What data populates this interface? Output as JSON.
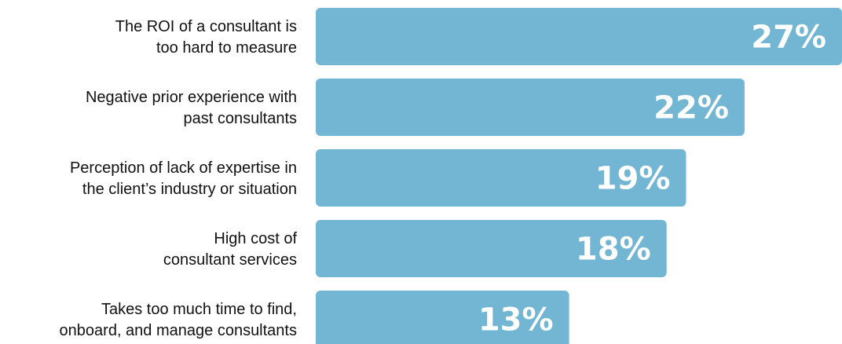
{
  "chart_data": {
    "type": "bar",
    "orientation": "horizontal",
    "categories": [
      [
        "The ROI of a consultant is",
        "too hard to measure"
      ],
      [
        "Negative prior experience with",
        "past consultants"
      ],
      [
        "Perception of lack of expertise in",
        "the client’s industry or situation"
      ],
      [
        "High cost of",
        "consultant services"
      ],
      [
        "Takes too much time to find,",
        "onboard, and manage consultants"
      ]
    ],
    "values": [
      27,
      22,
      19,
      18,
      13
    ],
    "value_labels": [
      "27%",
      "22%",
      "19%",
      "18%",
      "13%"
    ],
    "unit": "%",
    "xlim": [
      0,
      27
    ],
    "bar_color": "#72b6d3",
    "grid": false,
    "legend": "none"
  }
}
